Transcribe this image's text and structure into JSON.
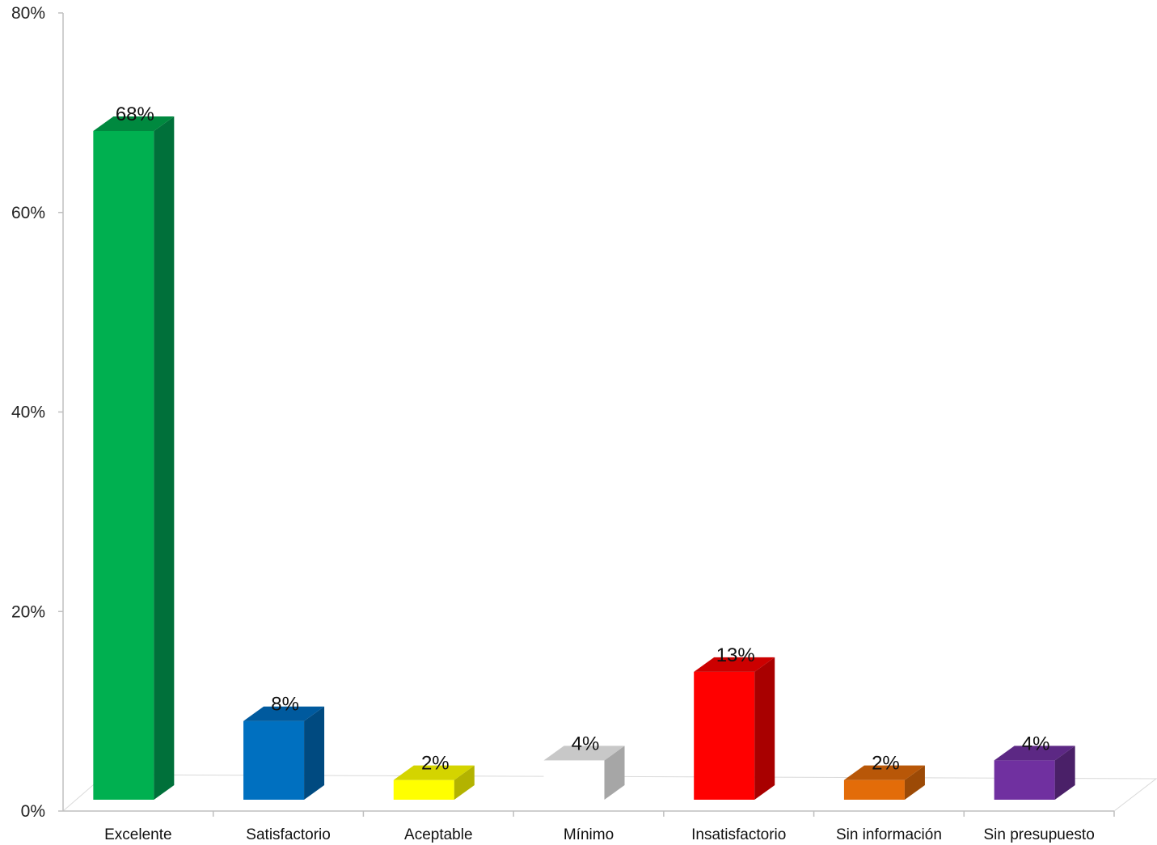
{
  "chart_data": {
    "type": "bar",
    "categories": [
      "Excelente",
      "Satisfactorio",
      "Aceptable",
      "Mínimo",
      "Insatisfactorio",
      "Sin información",
      "Sin presupuesto"
    ],
    "values": [
      68,
      8,
      2,
      4,
      13,
      2,
      4
    ],
    "data_labels": [
      "68%",
      "8%",
      "2%",
      "4%",
      "13%",
      "2%",
      "4%"
    ],
    "colors": [
      {
        "front": "#00b050",
        "side": "#00703a",
        "top": "#00893f"
      },
      {
        "front": "#0070c0",
        "side": "#004a80",
        "top": "#005a9e"
      },
      {
        "front": "#ffff00",
        "side": "#b3b300",
        "top": "#d4d400"
      },
      {
        "front": "#ffffff",
        "side": "#a6a6a6",
        "top": "#c8c8c8"
      },
      {
        "front": "#ff0000",
        "side": "#a80000",
        "top": "#cc0000"
      },
      {
        "front": "#e36c09",
        "side": "#9c4a06",
        "top": "#b85708"
      },
      {
        "front": "#7030a0",
        "side": "#4a2068",
        "top": "#5c2884"
      }
    ],
    "y_ticks": [
      "0%",
      "20%",
      "40%",
      "60%",
      "80%"
    ],
    "ylim": [
      0,
      80
    ],
    "grid": false,
    "style": "3d-column",
    "title": "",
    "xlabel": "",
    "ylabel": ""
  }
}
